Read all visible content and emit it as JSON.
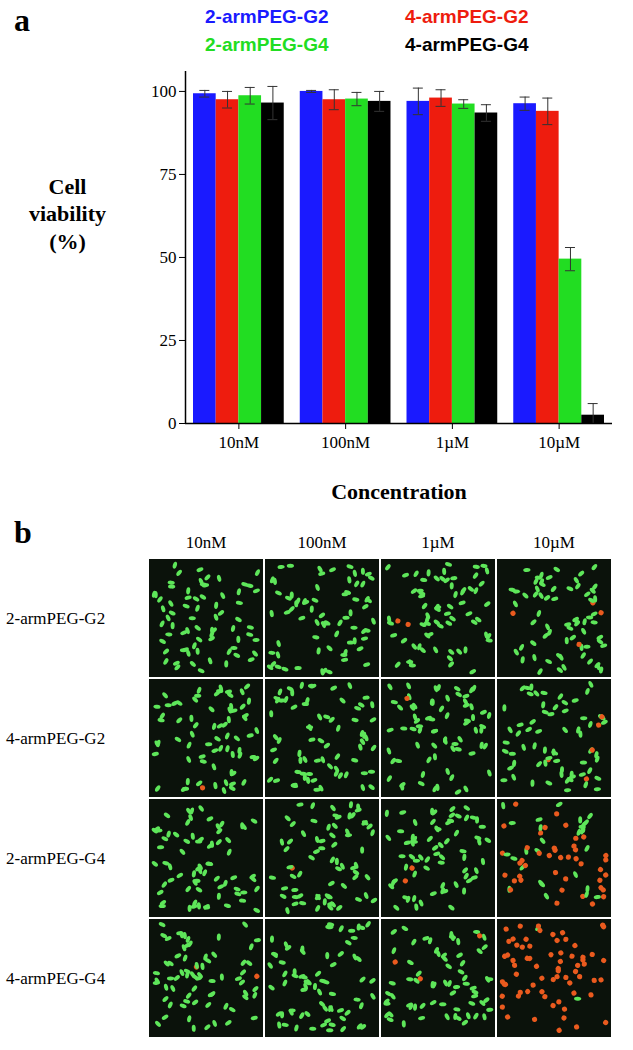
{
  "chart_data": {
    "type": "bar",
    "title": "a",
    "categories": [
      "10nM",
      "100nM",
      "1µM",
      "10µM"
    ],
    "series": [
      {
        "name": "2-armPEG-G2",
        "color": "#1a1aff",
        "values": [
          99.3,
          100,
          97,
          96.3
        ],
        "errors": [
          1,
          0.3,
          4,
          2
        ]
      },
      {
        "name": "4-armPEG-G2",
        "color": "#ee1c0e",
        "values": [
          97.5,
          97.5,
          98,
          94
        ],
        "errors": [
          2.5,
          3,
          2.5,
          4
        ]
      },
      {
        "name": "2-armPEG-G4",
        "color": "#22dd22",
        "values": [
          98.7,
          97.7,
          96.2,
          49.5
        ],
        "errors": [
          2.5,
          2,
          1.3,
          3.5
        ]
      },
      {
        "name": "4-armPEG-G4",
        "color": "#000000",
        "values": [
          96.5,
          97,
          93.5,
          2.5
        ],
        "errors": [
          5,
          3,
          2.5,
          3.5
        ]
      }
    ],
    "ylim": [
      0,
      106
    ],
    "yticks": [
      0,
      25,
      50,
      75,
      100
    ],
    "ylabel": "Cell viability (%)",
    "xlabel": "Concentration",
    "legend": "top",
    "grid": false
  },
  "image_grid": {
    "label": "b",
    "columns": [
      "10nM",
      "100nM",
      "1µM",
      "10µM"
    ],
    "rows": [
      "2-armPEG-G2",
      "4-armPEG-G2",
      "2-armPEG-G4",
      "4-armPEG-G4"
    ]
  }
}
